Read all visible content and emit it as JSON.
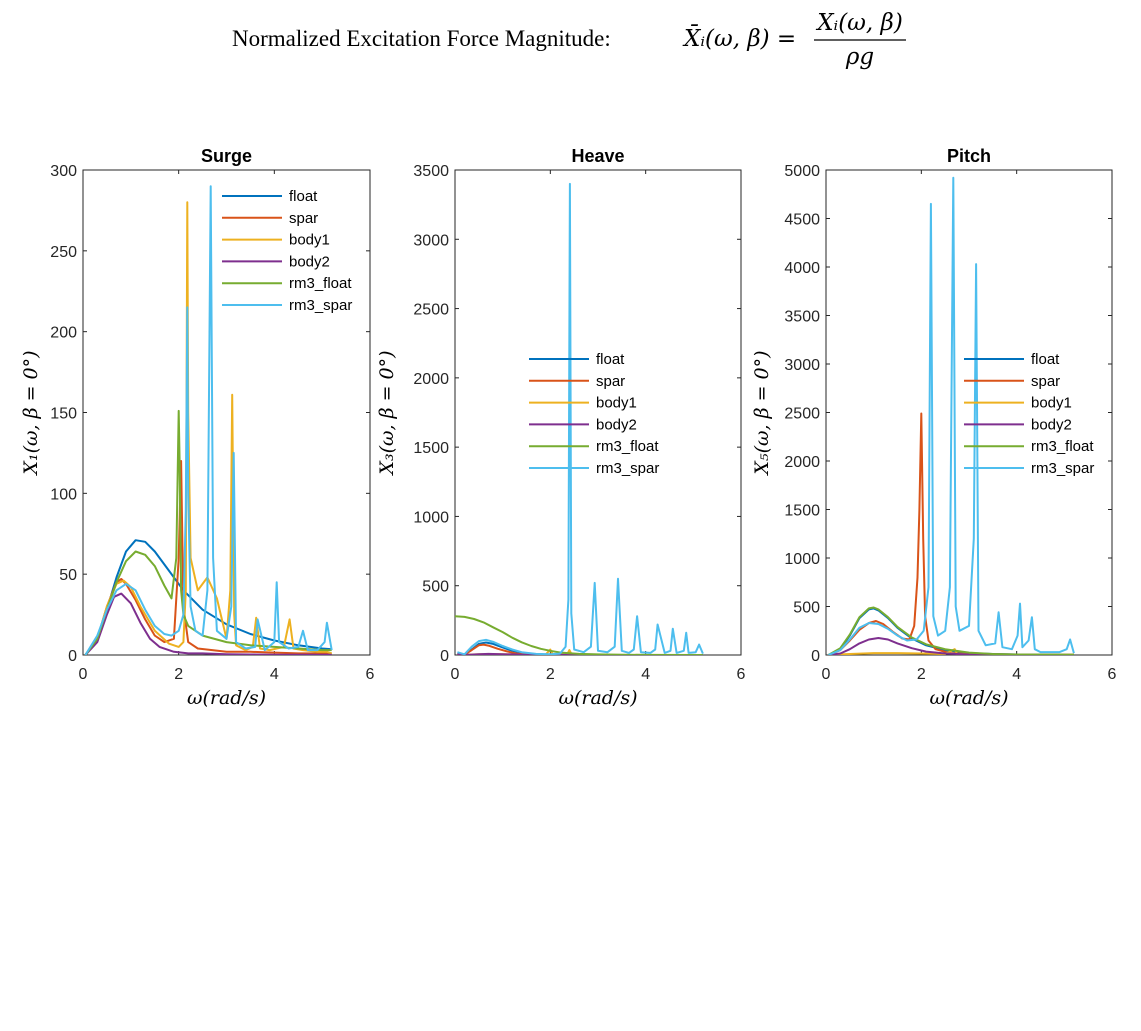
{
  "figure": {
    "suptitle_text": "Normalized Excitation Force Magnitude:",
    "suptitle_formula_lhs": "X̄ᵢ(ω, β) =",
    "suptitle_formula_num": "Xᵢ(ω, β)",
    "suptitle_formula_den": "ρg"
  },
  "colors": {
    "float": "#0072BD",
    "spar": "#D95319",
    "body1": "#EDB120",
    "body2": "#7E2F8E",
    "rm3_float": "#77AC30",
    "rm3_spar": "#4DBEEE"
  },
  "chart_data": [
    {
      "type": "line",
      "title": "Surge",
      "xlabel": "ω(rad/s)",
      "ylabel": "X₁(ω, β = 0°)",
      "xlim": [
        0,
        6
      ],
      "ylim": [
        0,
        300
      ],
      "xticks": [
        0,
        2,
        4,
        6
      ],
      "yticks": [
        0,
        50,
        100,
        150,
        200,
        250,
        300
      ],
      "grid": false,
      "legend_position": "top-right",
      "series": [
        {
          "name": "float",
          "x": [
            0.05,
            0.3,
            0.5,
            0.7,
            0.9,
            1.1,
            1.3,
            1.5,
            1.8,
            2.1,
            2.5,
            3.0,
            3.5,
            4.0,
            4.5,
            5.0,
            5.2
          ],
          "y": [
            0,
            10,
            28,
            48,
            64,
            71,
            70,
            64,
            52,
            40,
            28,
            19,
            13,
            9,
            6,
            4,
            3.5
          ]
        },
        {
          "name": "spar",
          "x": [
            0.05,
            0.3,
            0.5,
            0.7,
            0.8,
            0.9,
            1.1,
            1.3,
            1.5,
            1.7,
            1.9,
            2.0,
            2.05,
            2.1,
            2.2,
            2.4,
            2.7,
            3.0,
            3.5,
            4.0,
            4.5,
            5.0,
            5.2
          ],
          "y": [
            0,
            10,
            30,
            45,
            47,
            44,
            34,
            22,
            12,
            8,
            10,
            60,
            120,
            30,
            8,
            4,
            3,
            2,
            2,
            1.5,
            1,
            1,
            1
          ]
        },
        {
          "name": "body1",
          "x": [
            0.05,
            0.3,
            0.5,
            0.7,
            0.85,
            1.0,
            1.2,
            1.5,
            1.8,
            2.0,
            2.1,
            2.15,
            2.18,
            2.2,
            2.25,
            2.4,
            2.6,
            2.8,
            3.0,
            3.08,
            3.12,
            3.16,
            3.2,
            3.4,
            3.55,
            3.62,
            3.7,
            3.9,
            4.2,
            4.32,
            4.4,
            4.6,
            4.9,
            5.1,
            5.2
          ],
          "y": [
            0,
            10,
            30,
            44,
            46,
            42,
            30,
            15,
            7,
            5,
            8,
            40,
            280,
            150,
            60,
            40,
            48,
            35,
            10,
            40,
            161,
            25,
            6,
            3,
            5,
            23,
            4,
            3,
            5,
            22,
            4,
            3,
            2,
            2,
            1
          ]
        },
        {
          "name": "body2",
          "x": [
            0.05,
            0.3,
            0.5,
            0.65,
            0.8,
            1.0,
            1.2,
            1.4,
            1.6,
            1.9,
            2.2,
            2.5,
            3.0,
            3.5,
            4.0,
            5.2
          ],
          "y": [
            0,
            8,
            25,
            36,
            38,
            32,
            20,
            10,
            5,
            2,
            1,
            1,
            0.5,
            0.3,
            0.2,
            0.1
          ]
        },
        {
          "name": "rm3_float",
          "x": [
            0.05,
            0.3,
            0.5,
            0.7,
            0.9,
            1.1,
            1.3,
            1.5,
            1.7,
            1.85,
            1.95,
            2.0,
            2.02,
            2.05,
            2.1,
            2.2,
            2.5,
            3.0,
            3.5,
            4.0,
            4.5,
            5.0,
            5.2
          ],
          "y": [
            0,
            10,
            28,
            45,
            58,
            64,
            62,
            55,
            43,
            35,
            60,
            151,
            120,
            40,
            25,
            18,
            12,
            8,
            6,
            5,
            4,
            3,
            3
          ]
        },
        {
          "name": "rm3_spar",
          "x": [
            0.05,
            0.3,
            0.5,
            0.7,
            0.9,
            1.1,
            1.3,
            1.5,
            1.7,
            1.85,
            2.0,
            2.1,
            2.15,
            2.18,
            2.2,
            2.25,
            2.35,
            2.5,
            2.6,
            2.67,
            2.72,
            2.8,
            3.0,
            3.1,
            3.15,
            3.2,
            3.4,
            3.6,
            3.65,
            3.8,
            4.0,
            4.05,
            4.1,
            4.3,
            4.5,
            4.6,
            4.7,
            4.9,
            5.05,
            5.1,
            5.2
          ],
          "y": [
            0,
            12,
            28,
            40,
            44,
            40,
            28,
            18,
            13,
            12,
            15,
            25,
            90,
            215,
            100,
            30,
            15,
            12,
            40,
            290,
            60,
            15,
            10,
            30,
            125,
            8,
            4,
            5,
            22,
            3,
            8,
            45,
            8,
            4,
            5,
            15,
            3,
            3,
            8,
            20,
            3
          ]
        }
      ]
    },
    {
      "type": "line",
      "title": "Heave",
      "xlabel": "ω(rad/s)",
      "ylabel": "X₃(ω, β = 0°)",
      "xlim": [
        0,
        6
      ],
      "ylim": [
        0,
        3500
      ],
      "xticks": [
        0,
        2,
        4,
        6
      ],
      "yticks": [
        0,
        500,
        1000,
        1500,
        2000,
        2500,
        3000,
        3500
      ],
      "grid": false,
      "legend_position": "center",
      "series": [
        {
          "name": "float",
          "x": [
            0.05,
            0.2,
            0.35,
            0.5,
            0.65,
            0.8,
            1.0,
            1.2,
            1.5,
            2.0,
            3.0,
            4.0,
            5.2
          ],
          "y": [
            10,
            5,
            40,
            80,
            90,
            80,
            55,
            30,
            10,
            2,
            0,
            0,
            0
          ]
        },
        {
          "name": "spar",
          "x": [
            0.05,
            0.2,
            0.35,
            0.5,
            0.6,
            0.7,
            0.9,
            1.1,
            1.3,
            1.6,
            2.0,
            3.0,
            5.2
          ],
          "y": [
            10,
            3,
            35,
            70,
            75,
            68,
            45,
            25,
            10,
            3,
            1,
            0,
            0
          ]
        },
        {
          "name": "body1",
          "x": [
            0.05,
            0.5,
            1.0,
            1.5,
            1.9,
            2.0,
            2.05,
            2.2,
            2.35,
            2.4,
            2.45,
            2.6,
            3.0,
            4.0,
            5.2
          ],
          "y": [
            0,
            5,
            5,
            3,
            2,
            40,
            3,
            2,
            2,
            35,
            2,
            1,
            1,
            0,
            0
          ]
        },
        {
          "name": "body2",
          "x": [
            0.05,
            0.3,
            0.5,
            0.7,
            1.0,
            1.5,
            2.0,
            3.0,
            5.2
          ],
          "y": [
            5,
            2,
            5,
            8,
            6,
            2,
            1,
            0,
            0
          ]
        },
        {
          "name": "rm3_float",
          "x": [
            0.0,
            0.2,
            0.4,
            0.6,
            0.8,
            1.0,
            1.2,
            1.4,
            1.6,
            1.8,
            2.0,
            2.2,
            2.4,
            2.6,
            3.0,
            3.5,
            4.0,
            5.2
          ],
          "y": [
            280,
            275,
            260,
            235,
            200,
            165,
            125,
            92,
            65,
            45,
            30,
            18,
            12,
            8,
            4,
            2,
            1,
            0
          ]
        },
        {
          "name": "rm3_spar",
          "x": [
            0.05,
            0.2,
            0.35,
            0.5,
            0.65,
            0.8,
            1.0,
            1.2,
            1.4,
            1.7,
            2.0,
            2.2,
            2.32,
            2.38,
            2.41,
            2.44,
            2.5,
            2.7,
            2.85,
            2.93,
            3.0,
            3.2,
            3.35,
            3.42,
            3.5,
            3.65,
            3.75,
            3.82,
            3.9,
            4.1,
            4.2,
            4.25,
            4.4,
            4.52,
            4.57,
            4.65,
            4.8,
            4.85,
            4.9,
            5.05,
            5.12,
            5.2
          ],
          "y": [
            20,
            5,
            60,
            100,
            110,
            95,
            65,
            40,
            20,
            8,
            5,
            10,
            60,
            400,
            3400,
            300,
            40,
            20,
            60,
            520,
            30,
            20,
            60,
            550,
            30,
            15,
            40,
            280,
            20,
            15,
            40,
            220,
            15,
            30,
            190,
            15,
            30,
            160,
            15,
            20,
            75,
            10
          ]
        }
      ]
    },
    {
      "type": "line",
      "title": "Pitch",
      "xlabel": "ω(rad/s)",
      "ylabel": "X₅(ω, β = 0°)",
      "xlim": [
        0,
        6
      ],
      "ylim": [
        0,
        5000
      ],
      "xticks": [
        0,
        2,
        4,
        6
      ],
      "yticks": [
        0,
        500,
        1000,
        1500,
        2000,
        2500,
        3000,
        3500,
        4000,
        4500,
        5000
      ],
      "grid": false,
      "legend_position": "center-right",
      "series": [
        {
          "name": "float",
          "x": [
            0.05,
            0.3,
            0.5,
            0.7,
            0.9,
            1.0,
            1.1,
            1.3,
            1.5,
            1.8,
            2.1,
            2.5,
            3.0,
            3.5,
            4.0,
            5.2
          ],
          "y": [
            0,
            60,
            200,
            380,
            470,
            480,
            460,
            380,
            280,
            170,
            100,
            50,
            20,
            10,
            5,
            2
          ]
        },
        {
          "name": "spar",
          "x": [
            0.05,
            0.3,
            0.5,
            0.7,
            0.9,
            1.05,
            1.2,
            1.4,
            1.6,
            1.75,
            1.85,
            1.92,
            1.96,
            2.0,
            2.04,
            2.08,
            2.15,
            2.3,
            2.6,
            3.0,
            4.0,
            5.2
          ],
          "y": [
            0,
            50,
            150,
            260,
            330,
            350,
            320,
            240,
            170,
            160,
            300,
            800,
            1500,
            2490,
            1200,
            400,
            150,
            60,
            20,
            10,
            5,
            2
          ]
        },
        {
          "name": "body1",
          "x": [
            0.05,
            0.5,
            1.0,
            1.5,
            2.0,
            2.5,
            2.7,
            2.75,
            3.0,
            3.5,
            4.0,
            5.2
          ],
          "y": [
            0,
            10,
            20,
            20,
            15,
            10,
            60,
            10,
            5,
            5,
            3,
            2
          ]
        },
        {
          "name": "body2",
          "x": [
            0.05,
            0.3,
            0.5,
            0.7,
            0.9,
            1.1,
            1.3,
            1.5,
            1.8,
            2.1,
            2.5,
            3.0,
            4.0,
            5.2
          ],
          "y": [
            0,
            15,
            60,
            120,
            160,
            175,
            160,
            120,
            70,
            35,
            15,
            5,
            2,
            0
          ]
        },
        {
          "name": "rm3_float",
          "x": [
            0.05,
            0.3,
            0.5,
            0.7,
            0.9,
            1.0,
            1.1,
            1.3,
            1.5,
            1.8,
            2.1,
            2.5,
            3.0,
            3.5,
            4.0,
            5.2
          ],
          "y": [
            0,
            70,
            210,
            390,
            480,
            490,
            470,
            390,
            290,
            180,
            110,
            60,
            25,
            10,
            5,
            2
          ]
        },
        {
          "name": "rm3_spar",
          "x": [
            0.05,
            0.3,
            0.5,
            0.7,
            0.9,
            1.1,
            1.3,
            1.5,
            1.7,
            1.9,
            2.05,
            2.15,
            2.2,
            2.25,
            2.35,
            2.5,
            2.6,
            2.67,
            2.72,
            2.8,
            3.0,
            3.1,
            3.15,
            3.2,
            3.35,
            3.55,
            3.62,
            3.7,
            3.9,
            4.02,
            4.07,
            4.12,
            4.25,
            4.32,
            4.38,
            4.5,
            4.7,
            4.9,
            5.05,
            5.12,
            5.2
          ],
          "y": [
            0,
            50,
            160,
            280,
            330,
            320,
            270,
            200,
            150,
            160,
            250,
            700,
            4650,
            400,
            200,
            250,
            700,
            4920,
            500,
            250,
            300,
            1200,
            4030,
            250,
            100,
            120,
            440,
            80,
            60,
            200,
            530,
            80,
            150,
            390,
            60,
            30,
            30,
            30,
            60,
            160,
            20
          ]
        }
      ]
    }
  ]
}
